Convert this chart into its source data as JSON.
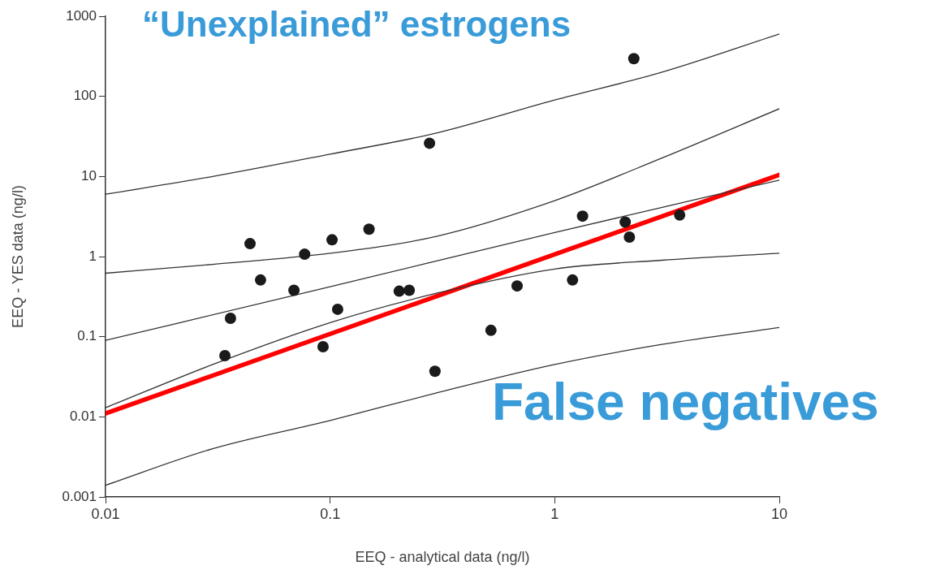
{
  "chart_data": {
    "type": "scatter",
    "xlabel": "EEQ - analytical data (ng/l)",
    "ylabel": "EEQ - YES data (ng/l)",
    "annotations": [
      "“Unexplained” estrogens",
      "False negatives"
    ],
    "log": "xy",
    "xlim": [
      0.01,
      10
    ],
    "ylim": [
      0.001,
      1000
    ],
    "xticks": [
      0.01,
      0.1,
      1,
      10
    ],
    "yticks": [
      0.001,
      0.01,
      0.1,
      1,
      10,
      100,
      1000
    ],
    "grid": false,
    "legend": false,
    "series": [
      {
        "type": "scatter",
        "color": "#1a1a1a",
        "marker": "circle",
        "x": [
          0.034,
          0.036,
          0.044,
          0.049,
          0.069,
          0.077,
          0.093,
          0.102,
          0.108,
          0.149,
          0.203,
          0.225,
          0.277,
          0.293,
          0.52,
          0.68,
          1.2,
          1.33,
          2.06,
          2.15,
          2.25,
          3.6
        ],
        "values": [
          0.058,
          0.17,
          1.45,
          0.51,
          0.38,
          1.07,
          0.075,
          1.62,
          0.22,
          2.2,
          0.37,
          0.38,
          26,
          0.037,
          0.12,
          0.43,
          0.51,
          3.2,
          2.7,
          1.75,
          295,
          3.3
        ]
      },
      {
        "type": "line",
        "color": "#333333",
        "marker": "none",
        "line_style": "solid",
        "x": [
          0.01,
          0.03,
          0.1,
          0.3,
          1,
          3,
          10
        ],
        "values": [
          6,
          10,
          19,
          35,
          90,
          200,
          600
        ]
      },
      {
        "type": "line",
        "color": "#333333",
        "marker": "none",
        "line_style": "solid",
        "x": [
          0.01,
          0.03,
          0.1,
          0.3,
          1,
          3,
          10
        ],
        "values": [
          0.62,
          0.8,
          1.1,
          1.8,
          5,
          17,
          70
        ]
      },
      {
        "type": "line",
        "color": "#333333",
        "marker": "none",
        "line_style": "solid",
        "x": [
          0.01,
          0.1,
          1,
          10
        ],
        "values": [
          0.09,
          0.42,
          2,
          9
        ]
      },
      {
        "type": "line",
        "color": "#333333",
        "marker": "none",
        "line_style": "solid",
        "x": [
          0.01,
          0.03,
          0.1,
          0.3,
          1,
          3,
          10
        ],
        "values": [
          0.013,
          0.045,
          0.15,
          0.35,
          0.7,
          0.9,
          1.1
        ]
      },
      {
        "type": "line",
        "color": "#333333",
        "marker": "none",
        "line_style": "solid",
        "x": [
          0.01,
          0.03,
          0.1,
          0.3,
          1,
          3,
          10
        ],
        "values": [
          0.0014,
          0.004,
          0.009,
          0.02,
          0.045,
          0.08,
          0.13
        ]
      },
      {
        "type": "line",
        "color": "#ff0000",
        "marker": "none",
        "line_style": "solid",
        "x": [
          0.01,
          10
        ],
        "values": [
          0.011,
          10.5
        ]
      }
    ]
  }
}
